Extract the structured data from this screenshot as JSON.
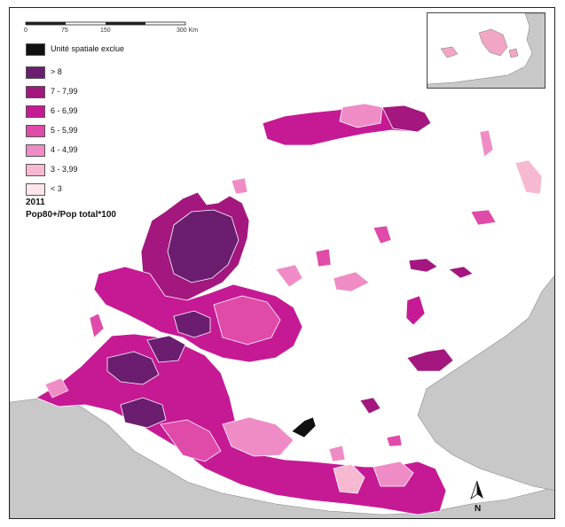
{
  "scale_bar": {
    "ticks": [
      "0",
      "75",
      "150",
      "300 Km"
    ]
  },
  "legend": {
    "title": "Pop80+/Pop total*100",
    "year": "2011",
    "items": [
      {
        "label": "Unité spatiale exclue",
        "color": "#111111"
      },
      {
        "label": "> 8",
        "color": "#6b1e6f"
      },
      {
        "label": "7 - 7,99",
        "color": "#a3177f"
      },
      {
        "label": "6 - 6,99",
        "color": "#c61a95"
      },
      {
        "label": "5 - 5,99",
        "color": "#e04aa9"
      },
      {
        "label": "4 - 4,99",
        "color": "#ef8cc6"
      },
      {
        "label": "3 - 3,99",
        "color": "#f7b8d1"
      },
      {
        "label": "< 3",
        "color": "#fde6ea"
      }
    ]
  },
  "north_arrow": {
    "label": "N"
  },
  "colors": {
    "background_land": "#c8c8c8",
    "sea": "#ffffff",
    "border": "#ffffff"
  }
}
